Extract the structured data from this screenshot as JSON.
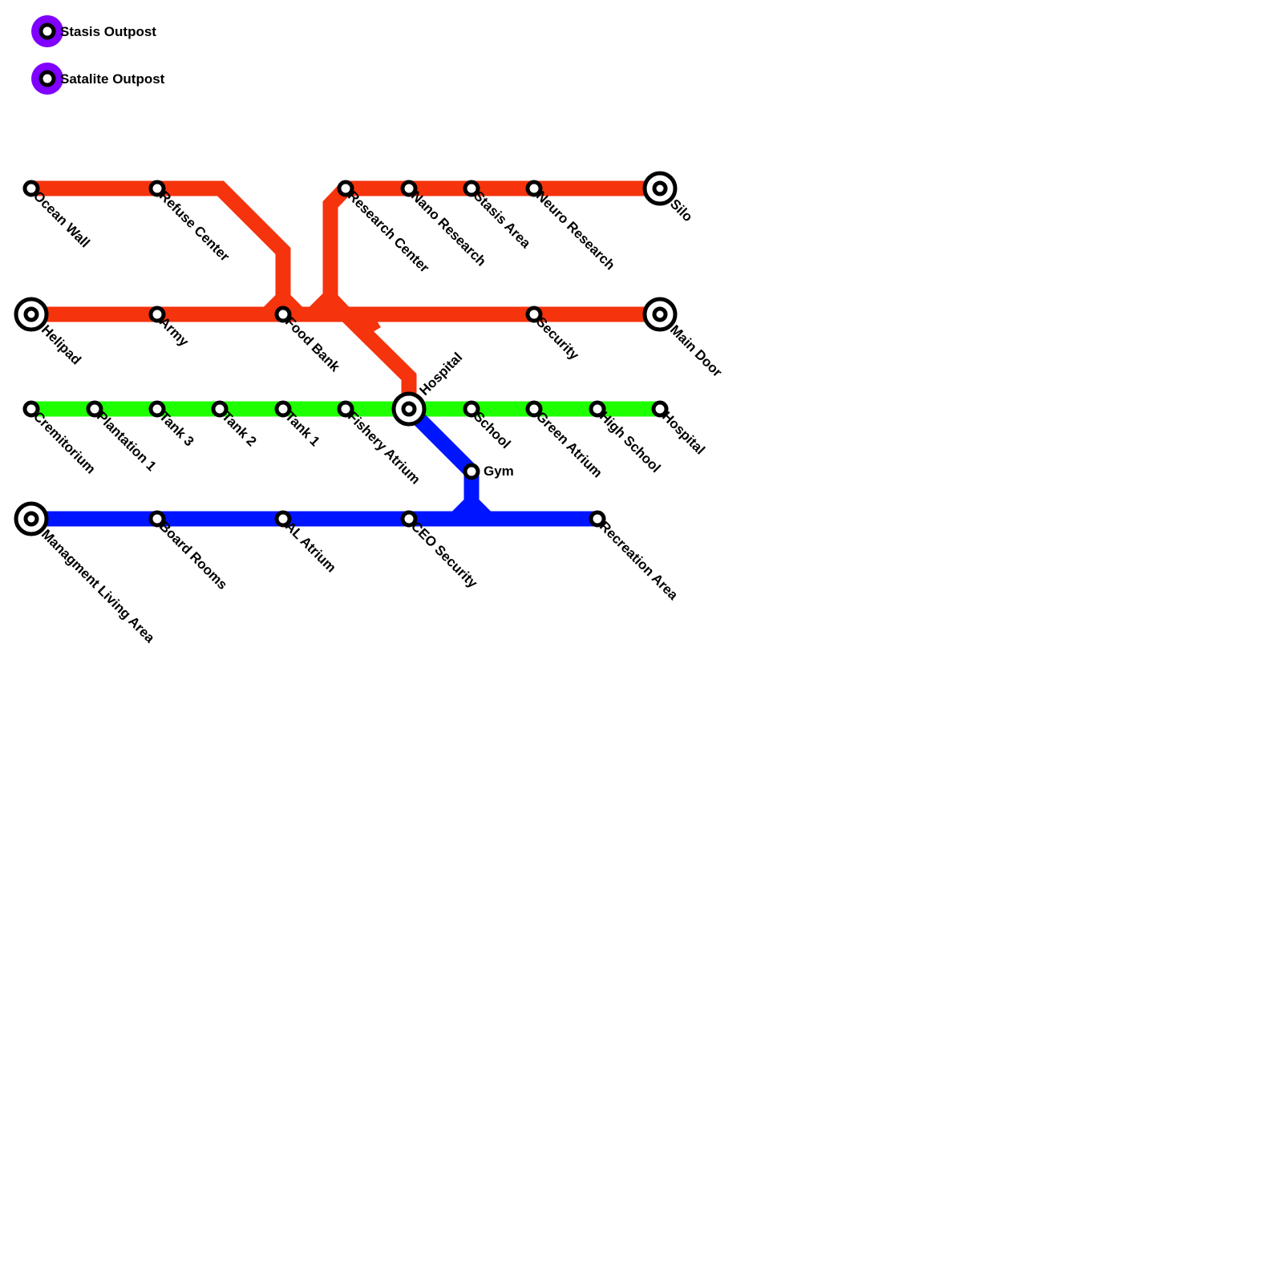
{
  "colors": {
    "red": "#f5330c",
    "green": "#1eff00",
    "blue": "#0015ff",
    "legend_purple": "#8000ff"
  },
  "legend": [
    {
      "label": "Stasis Outpost"
    },
    {
      "label": "Satalite Outpost"
    }
  ],
  "stations": [
    {
      "name": "Ocean Wall",
      "type": "stop",
      "line": "red"
    },
    {
      "name": "Refuse Center",
      "type": "stop",
      "line": "red"
    },
    {
      "name": "Research Center",
      "type": "stop",
      "line": "red"
    },
    {
      "name": "Nano Research",
      "type": "stop",
      "line": "red"
    },
    {
      "name": "Stasis Area",
      "type": "stop",
      "line": "red"
    },
    {
      "name": "Neuro Research",
      "type": "stop",
      "line": "red"
    },
    {
      "name": "Silo",
      "type": "terminal",
      "line": "red"
    },
    {
      "name": "Helipad",
      "type": "terminal",
      "line": "red"
    },
    {
      "name": "Army",
      "type": "stop",
      "line": "red"
    },
    {
      "name": "Food Bank",
      "type": "stop",
      "line": "red"
    },
    {
      "name": "Security",
      "type": "stop",
      "line": "red"
    },
    {
      "name": "Main Door",
      "type": "terminal",
      "line": "red"
    },
    {
      "name": "Cremitorium",
      "type": "stop",
      "line": "green"
    },
    {
      "name": "Plantation 1",
      "type": "stop",
      "line": "green"
    },
    {
      "name": "Tank 3",
      "type": "stop",
      "line": "green"
    },
    {
      "name": "Tank 2",
      "type": "stop",
      "line": "green"
    },
    {
      "name": "Tank 1",
      "type": "stop",
      "line": "green"
    },
    {
      "name": "Fishery Atrium",
      "type": "stop",
      "line": "green"
    },
    {
      "name": "Hospital",
      "type": "interchange",
      "line": "red/green/blue"
    },
    {
      "name": "School",
      "type": "stop",
      "line": "green"
    },
    {
      "name": "Green Atrium",
      "type": "stop",
      "line": "green"
    },
    {
      "name": "High School",
      "type": "stop",
      "line": "green"
    },
    {
      "name": "Hospital",
      "type": "stop",
      "line": "green"
    },
    {
      "name": "Gym",
      "type": "stop",
      "line": "blue"
    },
    {
      "name": "Managment Living Area",
      "type": "terminal",
      "line": "blue"
    },
    {
      "name": "Board Rooms",
      "type": "stop",
      "line": "blue"
    },
    {
      "name": "AL Atrium",
      "type": "stop",
      "line": "blue"
    },
    {
      "name": "CEO Security",
      "type": "stop",
      "line": "blue"
    },
    {
      "name": "Recreation Area",
      "type": "stop",
      "line": "blue"
    }
  ]
}
